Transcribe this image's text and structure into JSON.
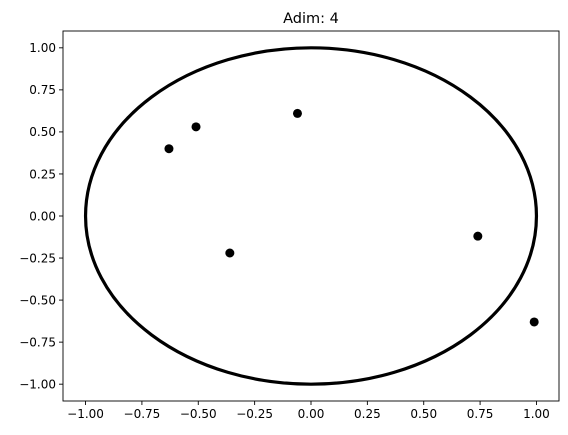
{
  "chart_data": {
    "type": "scatter",
    "title": "Adim: 4",
    "xlabel": "",
    "ylabel": "",
    "xlim": [
      -1.1,
      1.1
    ],
    "ylim": [
      -1.1,
      1.1
    ],
    "xticks": [
      -1.0,
      -0.75,
      -0.5,
      -0.25,
      0.0,
      0.25,
      0.5,
      0.75,
      1.0
    ],
    "yticks": [
      -1.0,
      -0.75,
      -0.5,
      -0.25,
      0.0,
      0.25,
      0.5,
      0.75,
      1.0
    ],
    "xtick_labels": [
      "−1.00",
      "−0.75",
      "−0.50",
      "−0.25",
      "0.00",
      "0.25",
      "0.50",
      "0.75",
      "1.00"
    ],
    "ytick_labels": [
      "−1.00",
      "−0.75",
      "−0.50",
      "−0.25",
      "0.00",
      "0.25",
      "0.50",
      "0.75",
      "1.00"
    ],
    "grid": false,
    "circle": {
      "center": [
        0,
        0
      ],
      "radius": 1.0,
      "color": "#000000"
    },
    "points": [
      {
        "x": -0.63,
        "y": 0.4
      },
      {
        "x": -0.51,
        "y": 0.53
      },
      {
        "x": -0.06,
        "y": 0.61
      },
      {
        "x": -0.36,
        "y": -0.22
      },
      {
        "x": 0.74,
        "y": -0.12
      },
      {
        "x": 0.99,
        "y": -0.63
      }
    ],
    "point_color": "#000000"
  }
}
